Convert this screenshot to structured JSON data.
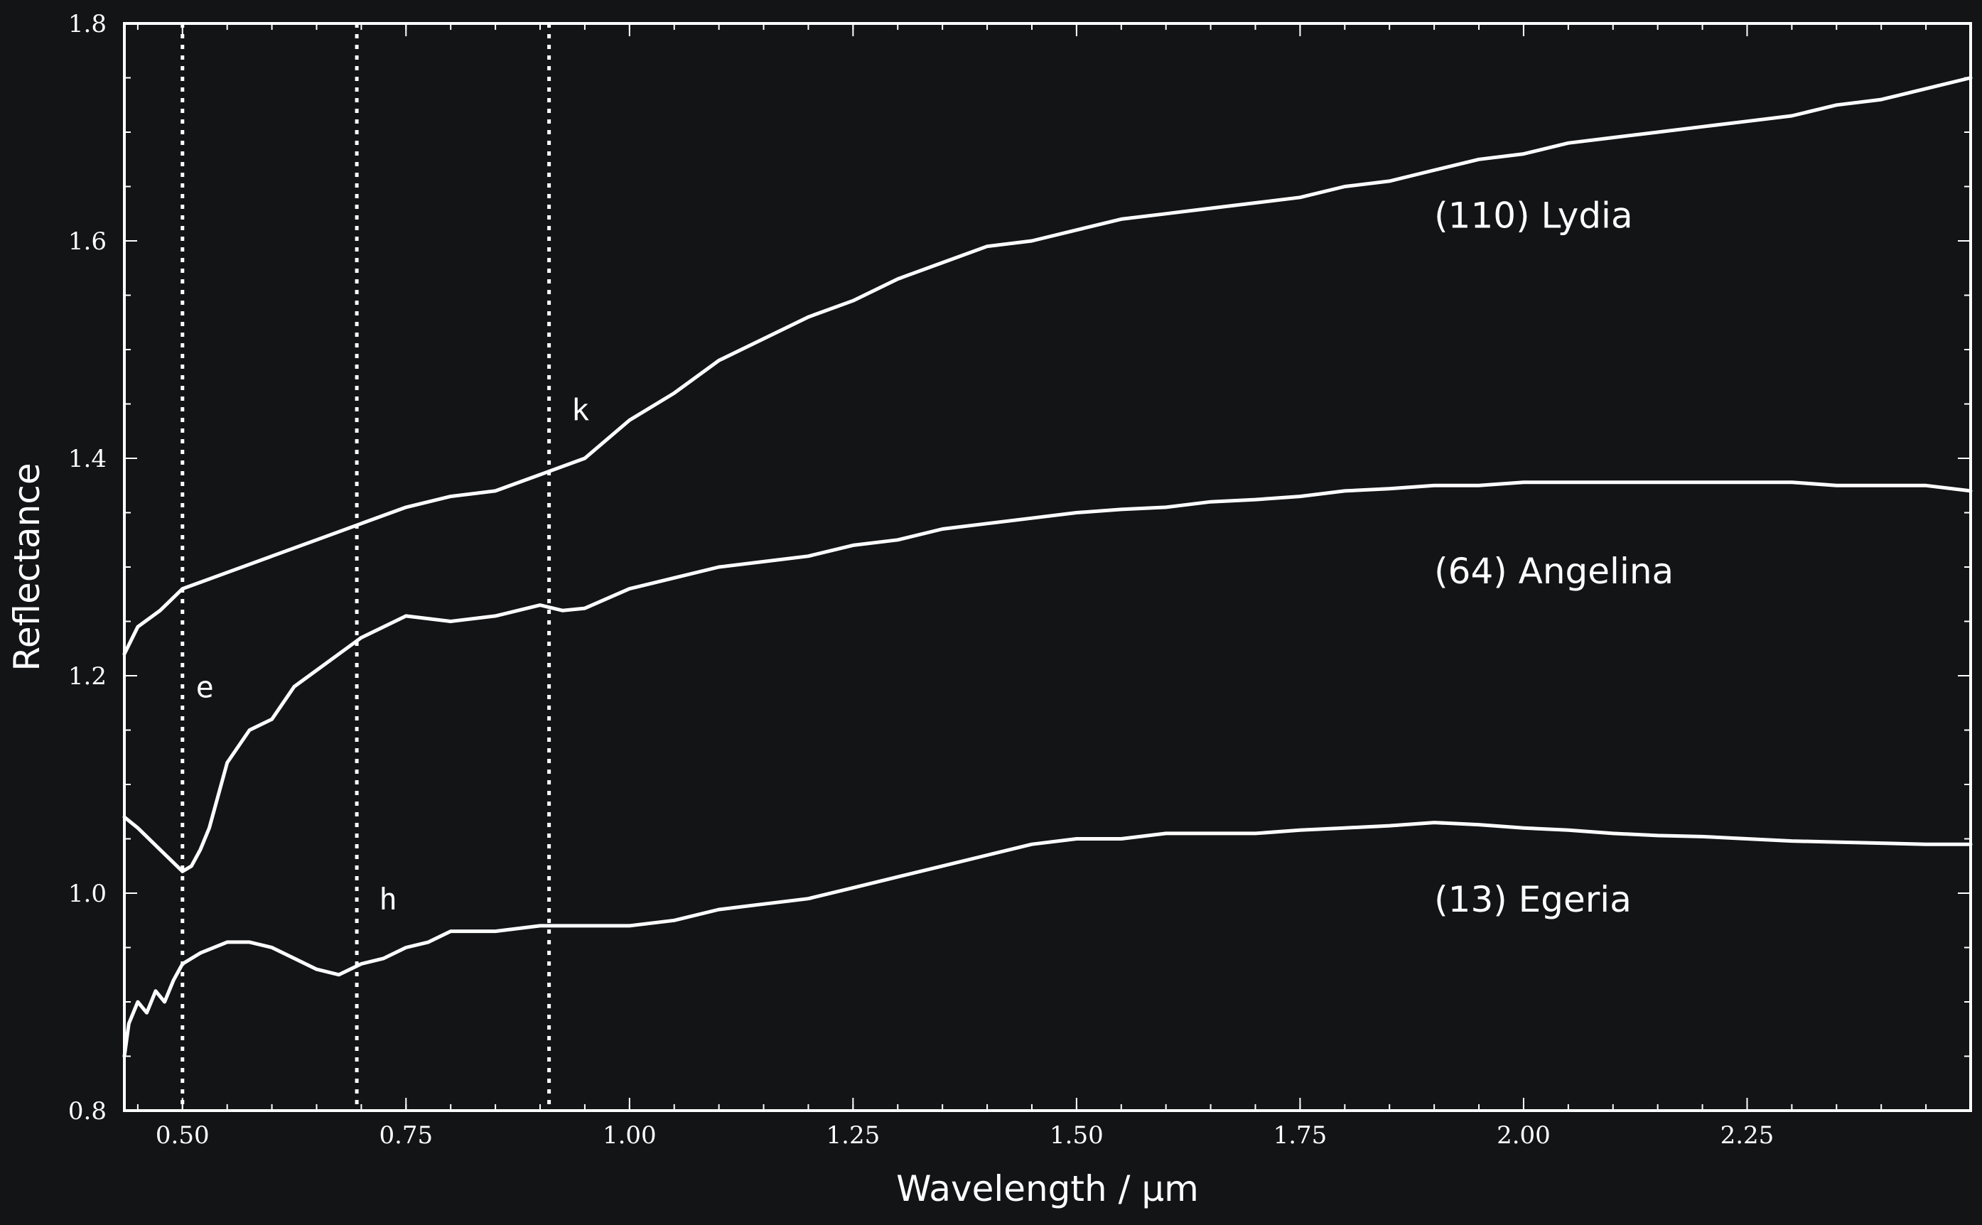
{
  "chart_data": {
    "type": "line",
    "xlabel": "Wavelength / μm",
    "ylabel": "Reflectance",
    "xlim": [
      0.435,
      2.5
    ],
    "ylim": [
      0.8,
      1.8
    ],
    "xticks": [
      "0.50",
      "0.75",
      "1.00",
      "1.25",
      "1.50",
      "1.75",
      "2.00",
      "2.25"
    ],
    "yticks": [
      "0.8",
      "1.0",
      "1.2",
      "1.4",
      "1.6",
      "1.8"
    ],
    "grid": false,
    "background_color": "#131416",
    "line_color": "#ffffff",
    "vlines": [
      {
        "label": "e",
        "x": 0.5,
        "label_x": 0.515,
        "label_y": 1.18
      },
      {
        "label": "h",
        "x": 0.695,
        "label_x": 0.72,
        "label_y": 0.985
      },
      {
        "label": "k",
        "x": 0.91,
        "label_x": 0.935,
        "label_y": 1.435
      }
    ],
    "series": [
      {
        "name": "(110) Lydia",
        "label_x": 1.9,
        "label_y": 1.612,
        "x": [
          0.435,
          0.45,
          0.475,
          0.5,
          0.55,
          0.6,
          0.65,
          0.7,
          0.75,
          0.8,
          0.85,
          0.9,
          0.95,
          1.0,
          1.05,
          1.1,
          1.15,
          1.2,
          1.25,
          1.3,
          1.35,
          1.4,
          1.45,
          1.5,
          1.55,
          1.6,
          1.65,
          1.7,
          1.75,
          1.8,
          1.85,
          1.9,
          1.95,
          2.0,
          2.05,
          2.1,
          2.15,
          2.2,
          2.25,
          2.3,
          2.35,
          2.4,
          2.45,
          2.5
        ],
        "y": [
          1.22,
          1.245,
          1.26,
          1.28,
          1.295,
          1.31,
          1.325,
          1.34,
          1.355,
          1.365,
          1.37,
          1.385,
          1.4,
          1.435,
          1.46,
          1.49,
          1.51,
          1.53,
          1.545,
          1.565,
          1.58,
          1.595,
          1.6,
          1.61,
          1.62,
          1.625,
          1.63,
          1.635,
          1.64,
          1.65,
          1.655,
          1.665,
          1.675,
          1.68,
          1.69,
          1.695,
          1.7,
          1.705,
          1.71,
          1.715,
          1.725,
          1.73,
          1.74,
          1.75
        ]
      },
      {
        "name": "(64) Angelina",
        "label_x": 1.9,
        "label_y": 1.285,
        "x": [
          0.435,
          0.45,
          0.475,
          0.5,
          0.51,
          0.52,
          0.53,
          0.55,
          0.575,
          0.6,
          0.625,
          0.65,
          0.675,
          0.7,
          0.725,
          0.75,
          0.8,
          0.85,
          0.9,
          0.925,
          0.95,
          1.0,
          1.05,
          1.1,
          1.15,
          1.2,
          1.25,
          1.3,
          1.35,
          1.4,
          1.45,
          1.5,
          1.55,
          1.6,
          1.65,
          1.7,
          1.75,
          1.8,
          1.85,
          1.9,
          1.95,
          2.0,
          2.05,
          2.1,
          2.15,
          2.2,
          2.25,
          2.3,
          2.35,
          2.4,
          2.45,
          2.5
        ],
        "y": [
          1.07,
          1.06,
          1.04,
          1.02,
          1.025,
          1.04,
          1.06,
          1.12,
          1.15,
          1.16,
          1.19,
          1.205,
          1.22,
          1.235,
          1.245,
          1.255,
          1.25,
          1.255,
          1.265,
          1.26,
          1.262,
          1.28,
          1.29,
          1.3,
          1.305,
          1.31,
          1.32,
          1.325,
          1.335,
          1.34,
          1.345,
          1.35,
          1.353,
          1.355,
          1.36,
          1.362,
          1.365,
          1.37,
          1.372,
          1.375,
          1.375,
          1.378,
          1.378,
          1.378,
          1.378,
          1.378,
          1.378,
          1.378,
          1.375,
          1.375,
          1.375,
          1.37
        ]
      },
      {
        "name": "(13) Egeria",
        "label_x": 1.9,
        "label_y": 0.983,
        "x": [
          0.435,
          0.44,
          0.45,
          0.46,
          0.47,
          0.48,
          0.49,
          0.5,
          0.52,
          0.55,
          0.575,
          0.6,
          0.625,
          0.65,
          0.675,
          0.7,
          0.725,
          0.75,
          0.775,
          0.8,
          0.85,
          0.9,
          0.95,
          1.0,
          1.05,
          1.1,
          1.15,
          1.2,
          1.25,
          1.3,
          1.35,
          1.4,
          1.45,
          1.5,
          1.55,
          1.6,
          1.65,
          1.7,
          1.75,
          1.8,
          1.85,
          1.9,
          1.95,
          2.0,
          2.05,
          2.1,
          2.15,
          2.2,
          2.25,
          2.3,
          2.35,
          2.4,
          2.45,
          2.5
        ],
        "y": [
          0.85,
          0.88,
          0.9,
          0.89,
          0.91,
          0.9,
          0.92,
          0.935,
          0.945,
          0.955,
          0.955,
          0.95,
          0.94,
          0.93,
          0.925,
          0.935,
          0.94,
          0.95,
          0.955,
          0.965,
          0.965,
          0.97,
          0.97,
          0.97,
          0.975,
          0.985,
          0.99,
          0.995,
          1.005,
          1.015,
          1.025,
          1.035,
          1.045,
          1.05,
          1.05,
          1.055,
          1.055,
          1.055,
          1.058,
          1.06,
          1.062,
          1.065,
          1.063,
          1.06,
          1.058,
          1.055,
          1.053,
          1.052,
          1.05,
          1.048,
          1.047,
          1.046,
          1.045,
          1.045
        ]
      }
    ]
  }
}
